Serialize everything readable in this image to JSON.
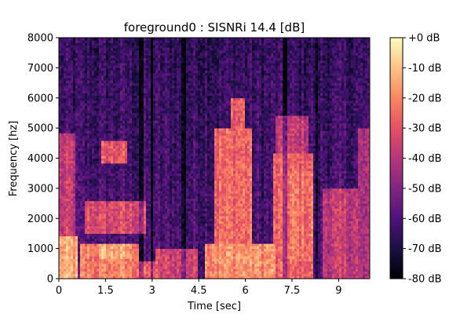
{
  "chart_data": {
    "type": "heatmap",
    "title": "foreground0 : SISNRi 14.4 [dB]",
    "xlabel": "Time [sec]",
    "ylabel": "Frequency [hz]",
    "xlim": [
      0,
      10.0
    ],
    "ylim": [
      0,
      8000
    ],
    "x_ticks": [
      {
        "value": 0,
        "label": "0"
      },
      {
        "value": 1.5,
        "label": "1.5"
      },
      {
        "value": 3,
        "label": "3"
      },
      {
        "value": 4.5,
        "label": "4.5"
      },
      {
        "value": 6,
        "label": "6"
      },
      {
        "value": 7.5,
        "label": "7.5"
      },
      {
        "value": 9,
        "label": "9"
      }
    ],
    "y_ticks": [
      {
        "value": 0,
        "label": "0"
      },
      {
        "value": 1000,
        "label": "1000"
      },
      {
        "value": 2000,
        "label": "2000"
      },
      {
        "value": 3000,
        "label": "3000"
      },
      {
        "value": 4000,
        "label": "4000"
      },
      {
        "value": 5000,
        "label": "5000"
      },
      {
        "value": 6000,
        "label": "6000"
      },
      {
        "value": 7000,
        "label": "7000"
      },
      {
        "value": 8000,
        "label": "8000"
      }
    ],
    "colorbar": {
      "colormap": "magma",
      "range": [
        -80,
        0
      ],
      "unit": "dB",
      "ticks": [
        {
          "value": 0,
          "label": "+0 dB"
        },
        {
          "value": -10,
          "label": "-10 dB"
        },
        {
          "value": -20,
          "label": "-20 dB"
        },
        {
          "value": -30,
          "label": "-30 dB"
        },
        {
          "value": -40,
          "label": "-40 dB"
        },
        {
          "value": -50,
          "label": "-50 dB"
        },
        {
          "value": -60,
          "label": "-60 dB"
        },
        {
          "value": -70,
          "label": "-70 dB"
        },
        {
          "value": -80,
          "label": "-80 dB"
        }
      ]
    },
    "colormap_stops": [
      "#000004",
      "#1c1044",
      "#4f127b",
      "#812581",
      "#b5367a",
      "#e55064",
      "#fb8761",
      "#fec287",
      "#fcfdbf"
    ],
    "energy_regions": [
      {
        "t_start": 0.0,
        "t_end": 0.6,
        "f_low": 0,
        "f_high": 1400,
        "level_db": -15
      },
      {
        "t_start": 0.0,
        "t_end": 0.5,
        "f_low": 1400,
        "f_high": 4800,
        "level_db": -38
      },
      {
        "t_start": 0.7,
        "t_end": 2.6,
        "f_low": 0,
        "f_high": 1200,
        "level_db": -22
      },
      {
        "t_start": 1.3,
        "t_end": 2.3,
        "f_low": 700,
        "f_high": 1200,
        "level_db": -14
      },
      {
        "t_start": 1.4,
        "t_end": 2.2,
        "f_low": 3800,
        "f_high": 4600,
        "level_db": -30
      },
      {
        "t_start": 0.8,
        "t_end": 2.8,
        "f_low": 1500,
        "f_high": 2600,
        "level_db": -33
      },
      {
        "t_start": 2.6,
        "t_end": 3.2,
        "f_low": 0,
        "f_high": 600,
        "level_db": -30
      },
      {
        "t_start": 3.1,
        "t_end": 4.5,
        "f_low": 0,
        "f_high": 1000,
        "level_db": -35
      },
      {
        "t_start": 4.7,
        "t_end": 7.0,
        "f_low": 0,
        "f_high": 1200,
        "level_db": -18
      },
      {
        "t_start": 5.0,
        "t_end": 6.2,
        "f_low": 1200,
        "f_high": 5000,
        "level_db": -26
      },
      {
        "t_start": 5.5,
        "t_end": 6.0,
        "f_low": 0,
        "f_high": 6000,
        "level_db": -28
      },
      {
        "t_start": 6.9,
        "t_end": 8.2,
        "f_low": 0,
        "f_high": 4200,
        "level_db": -28
      },
      {
        "t_start": 7.4,
        "t_end": 8.2,
        "f_low": 600,
        "f_high": 3600,
        "level_db": -24
      },
      {
        "t_start": 7.0,
        "t_end": 8.0,
        "f_low": 4200,
        "f_high": 5400,
        "level_db": -38
      },
      {
        "t_start": 8.5,
        "t_end": 9.6,
        "f_low": 0,
        "f_high": 3000,
        "level_db": -38
      },
      {
        "t_start": 9.6,
        "t_end": 10.0,
        "f_low": 0,
        "f_high": 5000,
        "level_db": -44
      }
    ],
    "background_level_db": -60,
    "quiet_columns_sec": [
      2.65,
      3.0,
      4.0,
      7.25,
      8.3
    ]
  }
}
